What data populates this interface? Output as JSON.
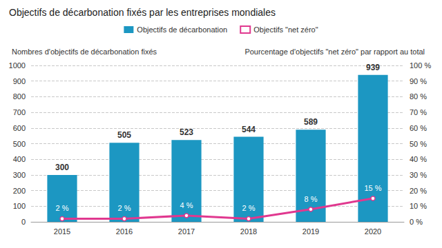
{
  "chart_data": {
    "type": "bar",
    "title": "Objectifs de décarbonation fixés par les entreprises mondiales",
    "y_label": "Nombres d'objectifs de décarbonation fixés",
    "y2_label": "Pourcentage d'objectifs \"net zéro\" par rapport au total",
    "categories": [
      "2015",
      "2016",
      "2017",
      "2018",
      "2019",
      "2020"
    ],
    "series": [
      {
        "name": "Objectifs de décarbonation",
        "type": "bar",
        "color": "#1c97c2",
        "values": [
          300,
          505,
          523,
          544,
          589,
          939
        ],
        "data_labels": true
      },
      {
        "name": "Objectifs \"net zéro\"",
        "type": "line",
        "axis": "y2",
        "color": "#e0388f",
        "marker": "circle",
        "values": [
          2,
          2,
          4,
          2,
          8,
          15
        ],
        "value_labels": [
          "2 %",
          "2 %",
          "4 %",
          "2 %",
          "8 %",
          "15 %"
        ],
        "data_labels": true
      }
    ],
    "ylim": [
      0,
      1000
    ],
    "yticks": [
      0,
      100,
      200,
      300,
      400,
      500,
      600,
      700,
      800,
      900,
      1000
    ],
    "y2lim": [
      0,
      100
    ],
    "y2ticks": [
      {
        "value": 0,
        "label": "0 %"
      },
      {
        "value": 10,
        "label": "10 %"
      },
      {
        "value": 20,
        "label": "20 %"
      },
      {
        "value": 30,
        "label": "30 %"
      },
      {
        "value": 40,
        "label": "40 %"
      },
      {
        "value": 50,
        "label": "50 %"
      },
      {
        "value": 60,
        "label": "60 %"
      },
      {
        "value": 70,
        "label": "70 %"
      },
      {
        "value": 80,
        "label": "80 %"
      },
      {
        "value": 90,
        "label": "90 %"
      },
      {
        "value": 100,
        "label": "100 %"
      }
    ],
    "grid": true,
    "legend": "top"
  }
}
